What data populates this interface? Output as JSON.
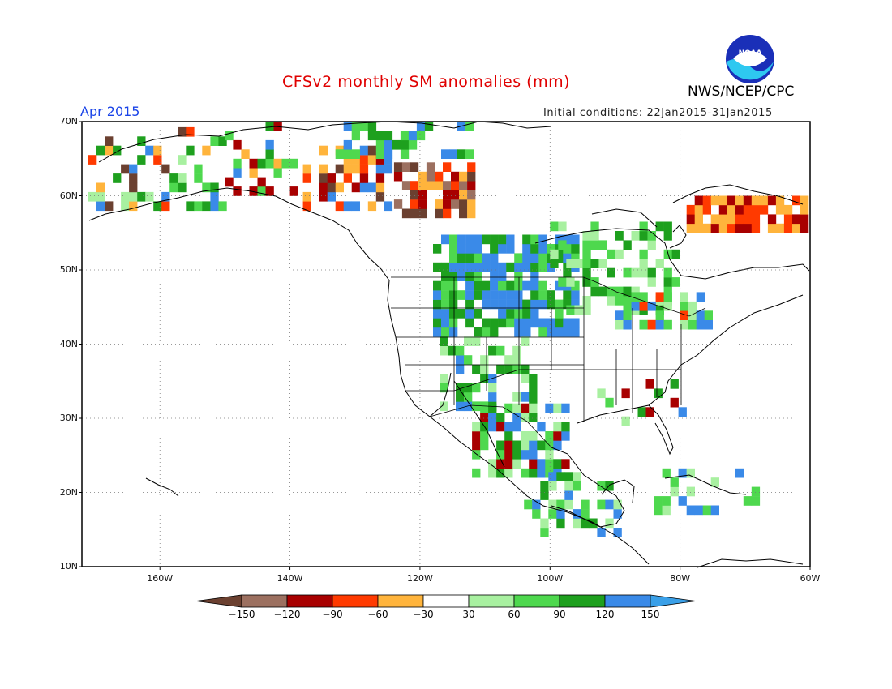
{
  "title": "CFSv2 monthly SM anomalies (mm)",
  "agency": "NWS/NCEP/CPC",
  "logo_text": "NOAA",
  "forecast_month": "Apr 2015",
  "initial_conditions": "Initial conditions: 22Jan2015-31Jan2015",
  "map": {
    "lon_range": [
      -172,
      -60
    ],
    "lat_range": [
      10,
      70
    ],
    "lat_labels": [
      "70N",
      "60N",
      "50N",
      "40N",
      "30N",
      "20N",
      "10N"
    ],
    "lat_values": [
      70,
      60,
      50,
      40,
      30,
      20,
      10
    ],
    "lon_labels": [
      "160W",
      "140W",
      "120W",
      "100W",
      "80W",
      "60W"
    ],
    "lon_values": [
      -160,
      -140,
      -120,
      -100,
      -80,
      -60
    ]
  },
  "colorbar": {
    "levels": [
      "-150",
      "-120",
      "-90",
      "-60",
      "-30",
      "30",
      "60",
      "90",
      "120",
      "150"
    ],
    "colors": [
      "#6b4030",
      "#9c7060",
      "#a80000",
      "#ff3a00",
      "#ffb43c",
      "#ffffff",
      "#a8f0a0",
      "#4ed84e",
      "#1ea01e",
      "#3a8ae8",
      "#3aa0e8"
    ]
  },
  "regions": [
    {
      "name": "alaska-west-mixed",
      "lon": [
        -171,
        -150
      ],
      "lat": [
        58,
        69
      ],
      "mix": [
        "#4ed84e",
        "#ffb43c",
        "#6b4030",
        "#1ea01e",
        "#a8f0a0",
        "#3a8ae8",
        "#ff3a00"
      ],
      "density": 0.35
    },
    {
      "name": "alaska-east-mixed",
      "lon": [
        -150,
        -138
      ],
      "lat": [
        60,
        69
      ],
      "mix": [
        "#4ed84e",
        "#1ea01e",
        "#3a8ae8",
        "#ffb43c",
        "#a80000"
      ],
      "density": 0.4
    },
    {
      "name": "yukon-dry",
      "lon": [
        -138,
        -125
      ],
      "lat": [
        58,
        66
      ],
      "mix": [
        "#ffb43c",
        "#ff3a00",
        "#3a8ae8",
        "#a80000",
        "#6b4030"
      ],
      "density": 0.5
    },
    {
      "name": "nw-territories-dry",
      "lon": [
        -124,
        -112
      ],
      "lat": [
        57,
        64
      ],
      "mix": [
        "#ff3a00",
        "#a80000",
        "#9c7060",
        "#ffb43c",
        "#6b4030"
      ],
      "density": 0.6
    },
    {
      "name": "arctic-coast-wet",
      "lon": [
        -133,
        -112
      ],
      "lat": [
        65,
        70
      ],
      "mix": [
        "#1ea01e",
        "#3a8ae8",
        "#4ed84e"
      ],
      "density": 0.6
    },
    {
      "name": "prairies-wet",
      "lon": [
        -118,
        -96
      ],
      "lat": [
        41,
        54
      ],
      "mix": [
        "#3a8ae8",
        "#3a8ae8",
        "#1ea01e",
        "#4ed84e"
      ],
      "density": 0.8
    },
    {
      "name": "ontario-light",
      "lon": [
        -100,
        -80
      ],
      "lat": [
        44,
        56
      ],
      "mix": [
        "#a8f0a0",
        "#4ed84e",
        "#1ea01e"
      ],
      "density": 0.45
    },
    {
      "name": "great-lakes-green",
      "lon": [
        -90,
        -76
      ],
      "lat": [
        42,
        47
      ],
      "mix": [
        "#4ed84e",
        "#a8f0a0",
        "#ff3a00",
        "#3a8ae8"
      ],
      "density": 0.5
    },
    {
      "name": "southwest-wet",
      "lon": [
        -117,
        -103
      ],
      "lat": [
        31,
        40
      ],
      "mix": [
        "#4ed84e",
        "#1ea01e",
        "#3a8ae8",
        "#a8f0a0"
      ],
      "density": 0.55
    },
    {
      "name": "mexico-north-wet",
      "lon": [
        -112,
        -98
      ],
      "lat": [
        22,
        32
      ],
      "mix": [
        "#3a8ae8",
        "#1ea01e",
        "#4ed84e",
        "#a80000",
        "#a8f0a0"
      ],
      "density": 0.7
    },
    {
      "name": "mexico-south-green",
      "lon": [
        -104,
        -90
      ],
      "lat": [
        14,
        22
      ],
      "mix": [
        "#a8f0a0",
        "#4ed84e",
        "#1ea01e",
        "#3a8ae8"
      ],
      "density": 0.45
    },
    {
      "name": "quebec-dry",
      "lon": [
        -79,
        -60
      ],
      "lat": [
        55,
        60
      ],
      "mix": [
        "#ffb43c",
        "#ff3a00",
        "#a80000",
        "#ffb43c"
      ],
      "density": 0.85
    },
    {
      "name": "southeast-mixed",
      "lon": [
        -94,
        -80
      ],
      "lat": [
        29,
        35
      ],
      "mix": [
        "#1ea01e",
        "#4ed84e",
        "#a8f0a0",
        "#a80000",
        "#3a8ae8"
      ],
      "density": 0.25
    },
    {
      "name": "caribbean-green",
      "lon": [
        -84,
        -68
      ],
      "lat": [
        17,
        23
      ],
      "mix": [
        "#a8f0a0",
        "#4ed84e",
        "#3a8ae8"
      ],
      "density": 0.3
    }
  ]
}
